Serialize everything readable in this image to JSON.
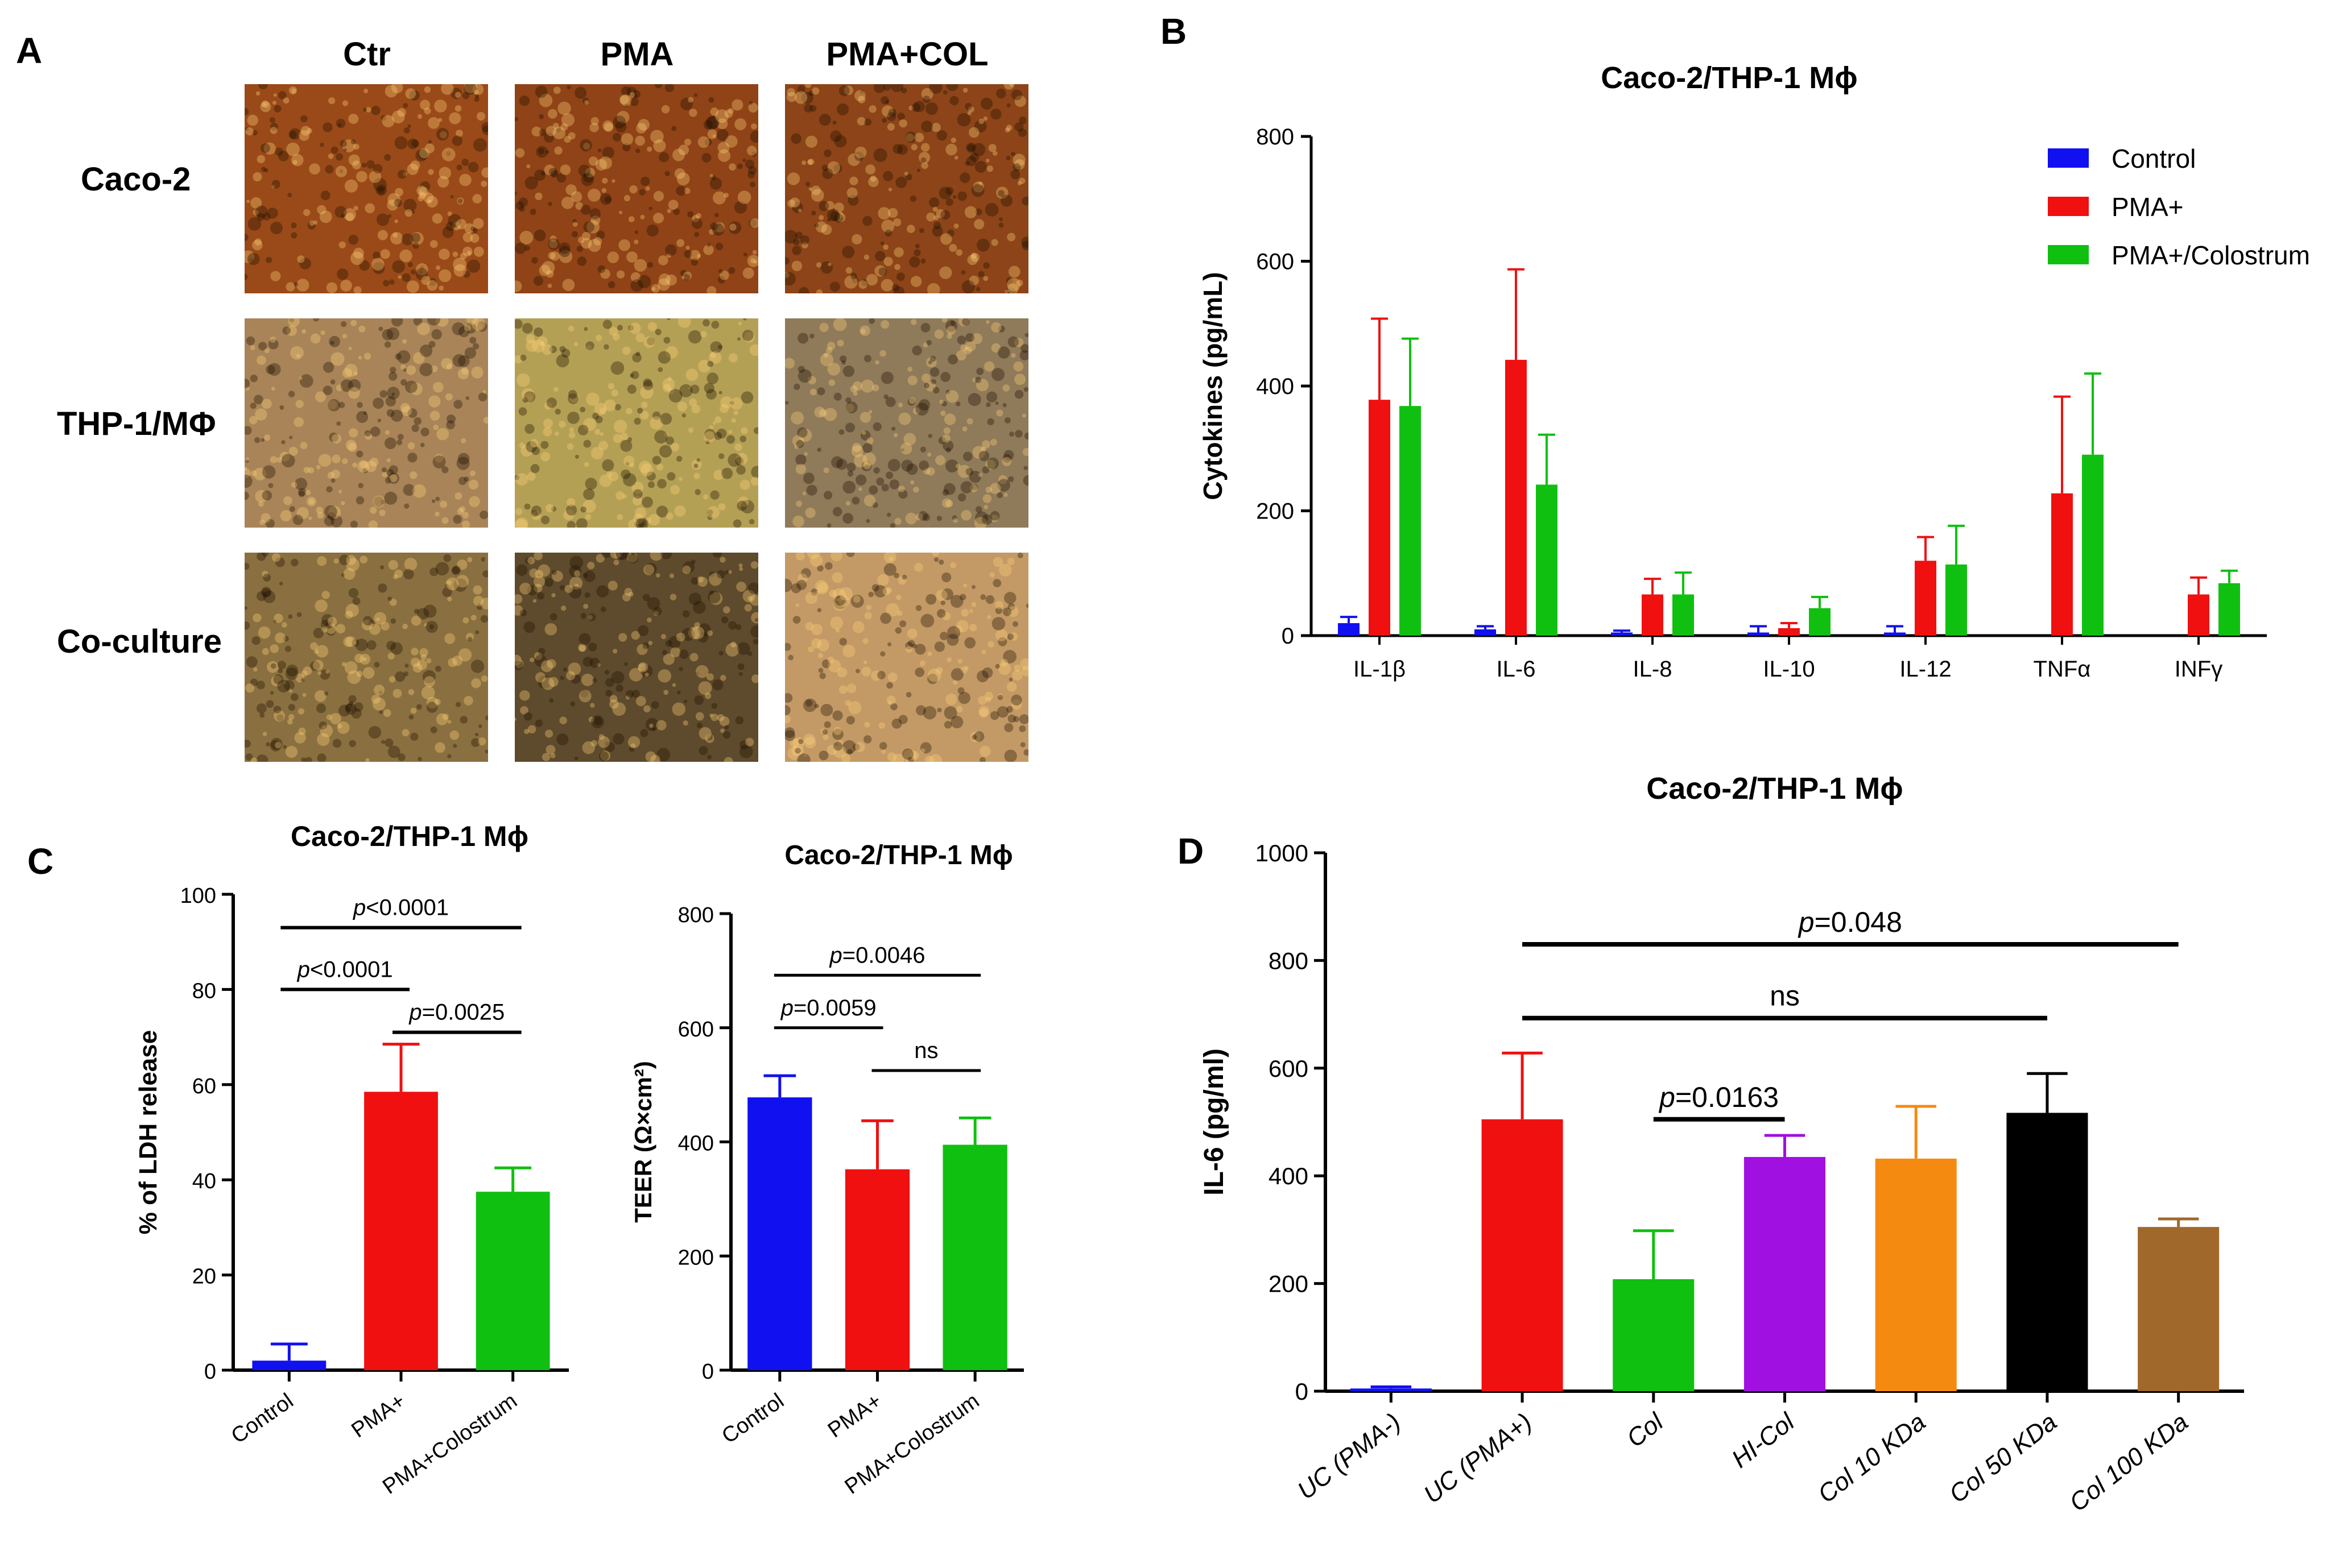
{
  "panels": {
    "a": {
      "letter": "A",
      "col_labels": [
        "Ctr",
        "PMA",
        "PMA+COL"
      ],
      "row_labels": [
        "Caco-2",
        "THP-1/MΦ",
        "Co-culture"
      ],
      "photo_colors": [
        [
          "#9a4a18",
          "#8f4316",
          "#8c4418"
        ],
        [
          "#a88458",
          "#b4a055",
          "#8f7a5a"
        ],
        [
          "#8a7040",
          "#5e4a2c",
          "#c39a66"
        ]
      ]
    },
    "b": {
      "letter": "B"
    },
    "c": {
      "letter": "C"
    },
    "d": {
      "letter": "D"
    }
  },
  "colors": {
    "blue": "#1010f0",
    "red": "#f01010",
    "green": "#10c010",
    "purple": "#a010e0",
    "orange": "#f58a10",
    "black": "#000000",
    "brown": "#a0682a"
  },
  "chart_data": [
    {
      "id": "B",
      "type": "bar",
      "title": "Caco-2/THP-1 Mϕ",
      "xlabel": "",
      "ylabel": "Cytokines (pg/mL)",
      "ylim": [
        0,
        800
      ],
      "yticks": [
        0,
        200,
        400,
        600,
        800
      ],
      "categories": [
        "IL-1β",
        "IL-6",
        "IL-8",
        "IL-10",
        "IL-12",
        "TNFα",
        "INFγ"
      ],
      "legend_position": "top-right",
      "series": [
        {
          "name": "Control",
          "color": "#1010f0",
          "values": [
            20,
            10,
            5,
            5,
            5,
            0,
            0
          ],
          "errors": [
            10,
            5,
            3,
            10,
            10,
            0,
            0
          ]
        },
        {
          "name": "PMA+",
          "color": "#f01010",
          "values": [
            378,
            442,
            66,
            12,
            120,
            228,
            66
          ],
          "errors": [
            130,
            145,
            25,
            8,
            38,
            155,
            27
          ]
        },
        {
          "name": "PMA+/Colostrum",
          "color": "#10c010",
          "values": [
            368,
            242,
            66,
            44,
            114,
            290,
            84
          ],
          "errors": [
            108,
            80,
            35,
            18,
            62,
            130,
            20
          ]
        }
      ]
    },
    {
      "id": "C1",
      "type": "bar",
      "title": "Caco-2/THP-1 Mϕ",
      "xlabel": "",
      "ylabel": "% of LDH release",
      "ylim": [
        0,
        100
      ],
      "yticks": [
        0,
        20,
        40,
        60,
        80,
        100
      ],
      "categories": [
        "Control",
        "PMA+",
        "PMA+Colostrum"
      ],
      "values": [
        2,
        58.5,
        37.5
      ],
      "errors": [
        3.5,
        10,
        5
      ],
      "colors": [
        "#1010f0",
        "#f01010",
        "#10c010"
      ],
      "annotations": [
        {
          "text": "p<0.0001",
          "from": 0,
          "to": 2,
          "y": 93
        },
        {
          "text": "p<0.0001",
          "from": 0,
          "to": 1,
          "y": 80
        },
        {
          "text": "p=0.0025",
          "from": 1,
          "to": 2,
          "y": 71
        }
      ]
    },
    {
      "id": "C2",
      "type": "bar",
      "title": "Caco-2/THP-1 Mϕ",
      "xlabel": "",
      "ylabel": "TEER (Ω×cm²)",
      "ylim": [
        0,
        800
      ],
      "yticks": [
        0,
        200,
        400,
        600,
        800
      ],
      "categories": [
        "Control",
        "PMA+",
        "PMA+Colostrum"
      ],
      "values": [
        478,
        352,
        395
      ],
      "errors": [
        38,
        85,
        47
      ],
      "colors": [
        "#1010f0",
        "#f01010",
        "#10c010"
      ],
      "annotations": [
        {
          "text": "p=0.0046",
          "from": 0,
          "to": 2,
          "y": 692
        },
        {
          "text": "p=0.0059",
          "from": 0,
          "to": 1,
          "y": 600
        },
        {
          "text": "ns",
          "from": 1,
          "to": 2,
          "y": 525
        }
      ]
    },
    {
      "id": "D",
      "type": "bar",
      "title": "Caco-2/THP-1 Mϕ",
      "xlabel": "",
      "ylabel": "IL-6 (pg/ml)",
      "ylim": [
        0,
        1000
      ],
      "yticks": [
        0,
        200,
        400,
        600,
        800,
        1000
      ],
      "categories": [
        "UC (PMA-)",
        "UC (PMA+)",
        "Col",
        "HI-Col",
        "Col 10 KDa",
        "Col 50 KDa",
        "Col 100 KDa"
      ],
      "values": [
        5,
        505,
        208,
        435,
        432,
        517,
        305
      ],
      "errors": [
        3,
        123,
        90,
        40,
        97,
        73,
        15
      ],
      "colors": [
        "#1010f0",
        "#f01010",
        "#10c010",
        "#a010e0",
        "#f58a10",
        "#000000",
        "#a0682a"
      ],
      "annotations": [
        {
          "text": "p=0.048",
          "from": 1,
          "to": 6,
          "y": 830
        },
        {
          "text": "ns",
          "from": 1,
          "to": 5,
          "y": 693
        },
        {
          "text": "p=0.0163",
          "from": 2,
          "to": 3,
          "y": 505
        }
      ]
    }
  ]
}
